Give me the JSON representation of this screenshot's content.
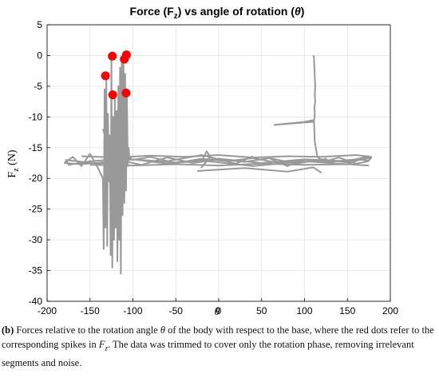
{
  "chart_data": {
    "type": "line",
    "title": {
      "pre": "Force (F",
      "sub": "z",
      "post": ") vs angle of rotation (",
      "sym": "θ",
      "end": ")"
    },
    "xlabel": "θ",
    "ylabel": {
      "main": "F",
      "sub": "z",
      "unit": " (N)"
    },
    "xlim": [
      -200,
      200
    ],
    "ylim": [
      -40,
      5
    ],
    "xticks": [
      -200,
      -150,
      -100,
      -50,
      0,
      50,
      100,
      150,
      200
    ],
    "yticks": [
      5,
      0,
      -5,
      -10,
      -15,
      -20,
      -25,
      -30,
      -35,
      -40
    ],
    "grid": true,
    "colors": {
      "line": "#999999",
      "dots": "#ff0000"
    },
    "series": [
      {
        "x": [
          -180,
          -170,
          -160,
          -150,
          -140,
          -135,
          -134,
          -133,
          -132,
          -131,
          -130,
          -129,
          -128,
          -127,
          -126,
          -125,
          -124,
          -123,
          -122,
          -121,
          -120,
          -119,
          -118,
          -117,
          -116,
          -115,
          -114,
          -113,
          -112,
          -111,
          -110,
          -109,
          -108,
          -107,
          -106,
          -105,
          -104,
          -103,
          -100,
          -80,
          -50,
          -20,
          10,
          40,
          70,
          100,
          130,
          160,
          175,
          178,
          150,
          120,
          90,
          60,
          30,
          0,
          -30,
          -60,
          -90,
          -120,
          -150,
          -175,
          -178,
          -140,
          -100,
          -50,
          0,
          50,
          100,
          150,
          175,
          150,
          100,
          40,
          -20,
          -60,
          -100,
          -130,
          -160,
          -180
        ],
        "y": [
          -17.5,
          -16.5,
          -18,
          -16,
          -18.5,
          -20,
          -31.5,
          -5.5,
          -28,
          -4,
          -31,
          -9.5,
          -20.5,
          -13,
          -32.5,
          0,
          -34.5,
          -10,
          -30,
          -6.5,
          -28,
          -9,
          -33.5,
          -5,
          -30,
          -2,
          -35.5,
          -1,
          -26,
          -0.5,
          -24,
          -3,
          -22,
          -6,
          -18,
          -15,
          -17,
          -16.8,
          -17,
          -16.5,
          -17.5,
          -16.8,
          -17.2,
          -16.7,
          -17.5,
          -16.9,
          -17.3,
          -16.9,
          -17.1,
          -16.6,
          -17.4,
          -16.9,
          -17.6,
          -16.7,
          -17.3,
          -16.9,
          -17.5,
          -16.6,
          -17.8,
          -16.9,
          -17.2,
          -17.8,
          -17,
          -17.6,
          -16.9,
          -17.4,
          -16.8,
          -17.5,
          -16.9,
          -17.2,
          -16.4,
          -17.7,
          -17.2,
          -18,
          -17.1,
          -17.6,
          -16.9,
          -17.3,
          -17.7,
          -17.5
        ]
      },
      {
        "x": [
          -135,
          -130,
          -128,
          -125,
          -122,
          -120,
          -118,
          -116,
          -114,
          -112,
          -110,
          -108,
          -106,
          -104,
          -102
        ],
        "y": [
          -12,
          -14,
          -13,
          -19,
          -14,
          -18.5,
          -15.5,
          -19,
          -14.5,
          -18,
          -15,
          -17.5,
          -16,
          -17,
          -16.5
        ]
      },
      {
        "x": [
          -160,
          -120,
          -80,
          -40,
          0,
          40,
          80,
          120,
          160,
          178
        ],
        "y": [
          -16.4,
          -16.6,
          -16.3,
          -16.5,
          -16.2,
          -16.6,
          -16.4,
          -16.5,
          -16.2,
          -16.5
        ]
      },
      {
        "x": [
          -150,
          -100,
          -50,
          0,
          50,
          100,
          150,
          175
        ],
        "y": [
          -17.8,
          -17.9,
          -17.7,
          -17.9,
          -17.6,
          -17.8,
          -17.7,
          -17.9
        ]
      },
      {
        "x": [
          -60,
          -20,
          20,
          40
        ],
        "y": [
          -17.2,
          -16.2,
          -17.6,
          -16.4
        ]
      },
      {
        "x": [
          -20,
          -14,
          -10,
          -20,
          -12
        ],
        "y": [
          -17.2,
          -15.6,
          -16.5,
          -18.2,
          -16.9
        ]
      },
      {
        "x": [
          -25,
          30,
          80,
          110,
          120
        ],
        "y": [
          -18.8,
          -18.3,
          -18.9,
          -18.2,
          -19.1
        ]
      },
      {
        "x": [
          60,
          80,
          100,
          120,
          140,
          160,
          175
        ],
        "y": [
          -16.8,
          -18,
          -16.9,
          -17.4,
          -16.6,
          -17.6,
          -17.2
        ]
      },
      {
        "x": [
          110,
          111,
          111.5,
          112,
          112.5,
          112,
          112.5,
          111.5,
          112,
          111.5,
          111,
          110.5,
          110,
          65,
          100,
          111,
          112,
          115,
          120,
          125,
          120,
          115
        ],
        "y": [
          0,
          -0.2,
          -2,
          -3.5,
          -5,
          -6.5,
          -7.5,
          -8.5,
          -9.5,
          -10.2,
          -10.5,
          -10.6,
          -10.8,
          -11.3,
          -10.8,
          -10.5,
          -14,
          -16.5,
          -17,
          -16.8,
          -17.2,
          -17
        ]
      }
    ],
    "points": [
      {
        "x": -132,
        "y": -3.3
      },
      {
        "x": -124,
        "y": -0.1
      },
      {
        "x": -123.5,
        "y": -6.4
      },
      {
        "x": -110,
        "y": -0.6
      },
      {
        "x": -107.5,
        "y": 0.1
      },
      {
        "x": -108,
        "y": -6.1
      }
    ]
  },
  "caption": {
    "tag": "(b)",
    "text1": " Forces relative to the rotation angle ",
    "theta": "θ",
    "text2": " of the body with respect to the base, where the red dots refer to the corresponding spikes in ",
    "fz_main": "F",
    "fz_sub": "z",
    "text3": ". The data was trimmed to cover only the rotation phase, removing irrelevant segments and noise."
  }
}
